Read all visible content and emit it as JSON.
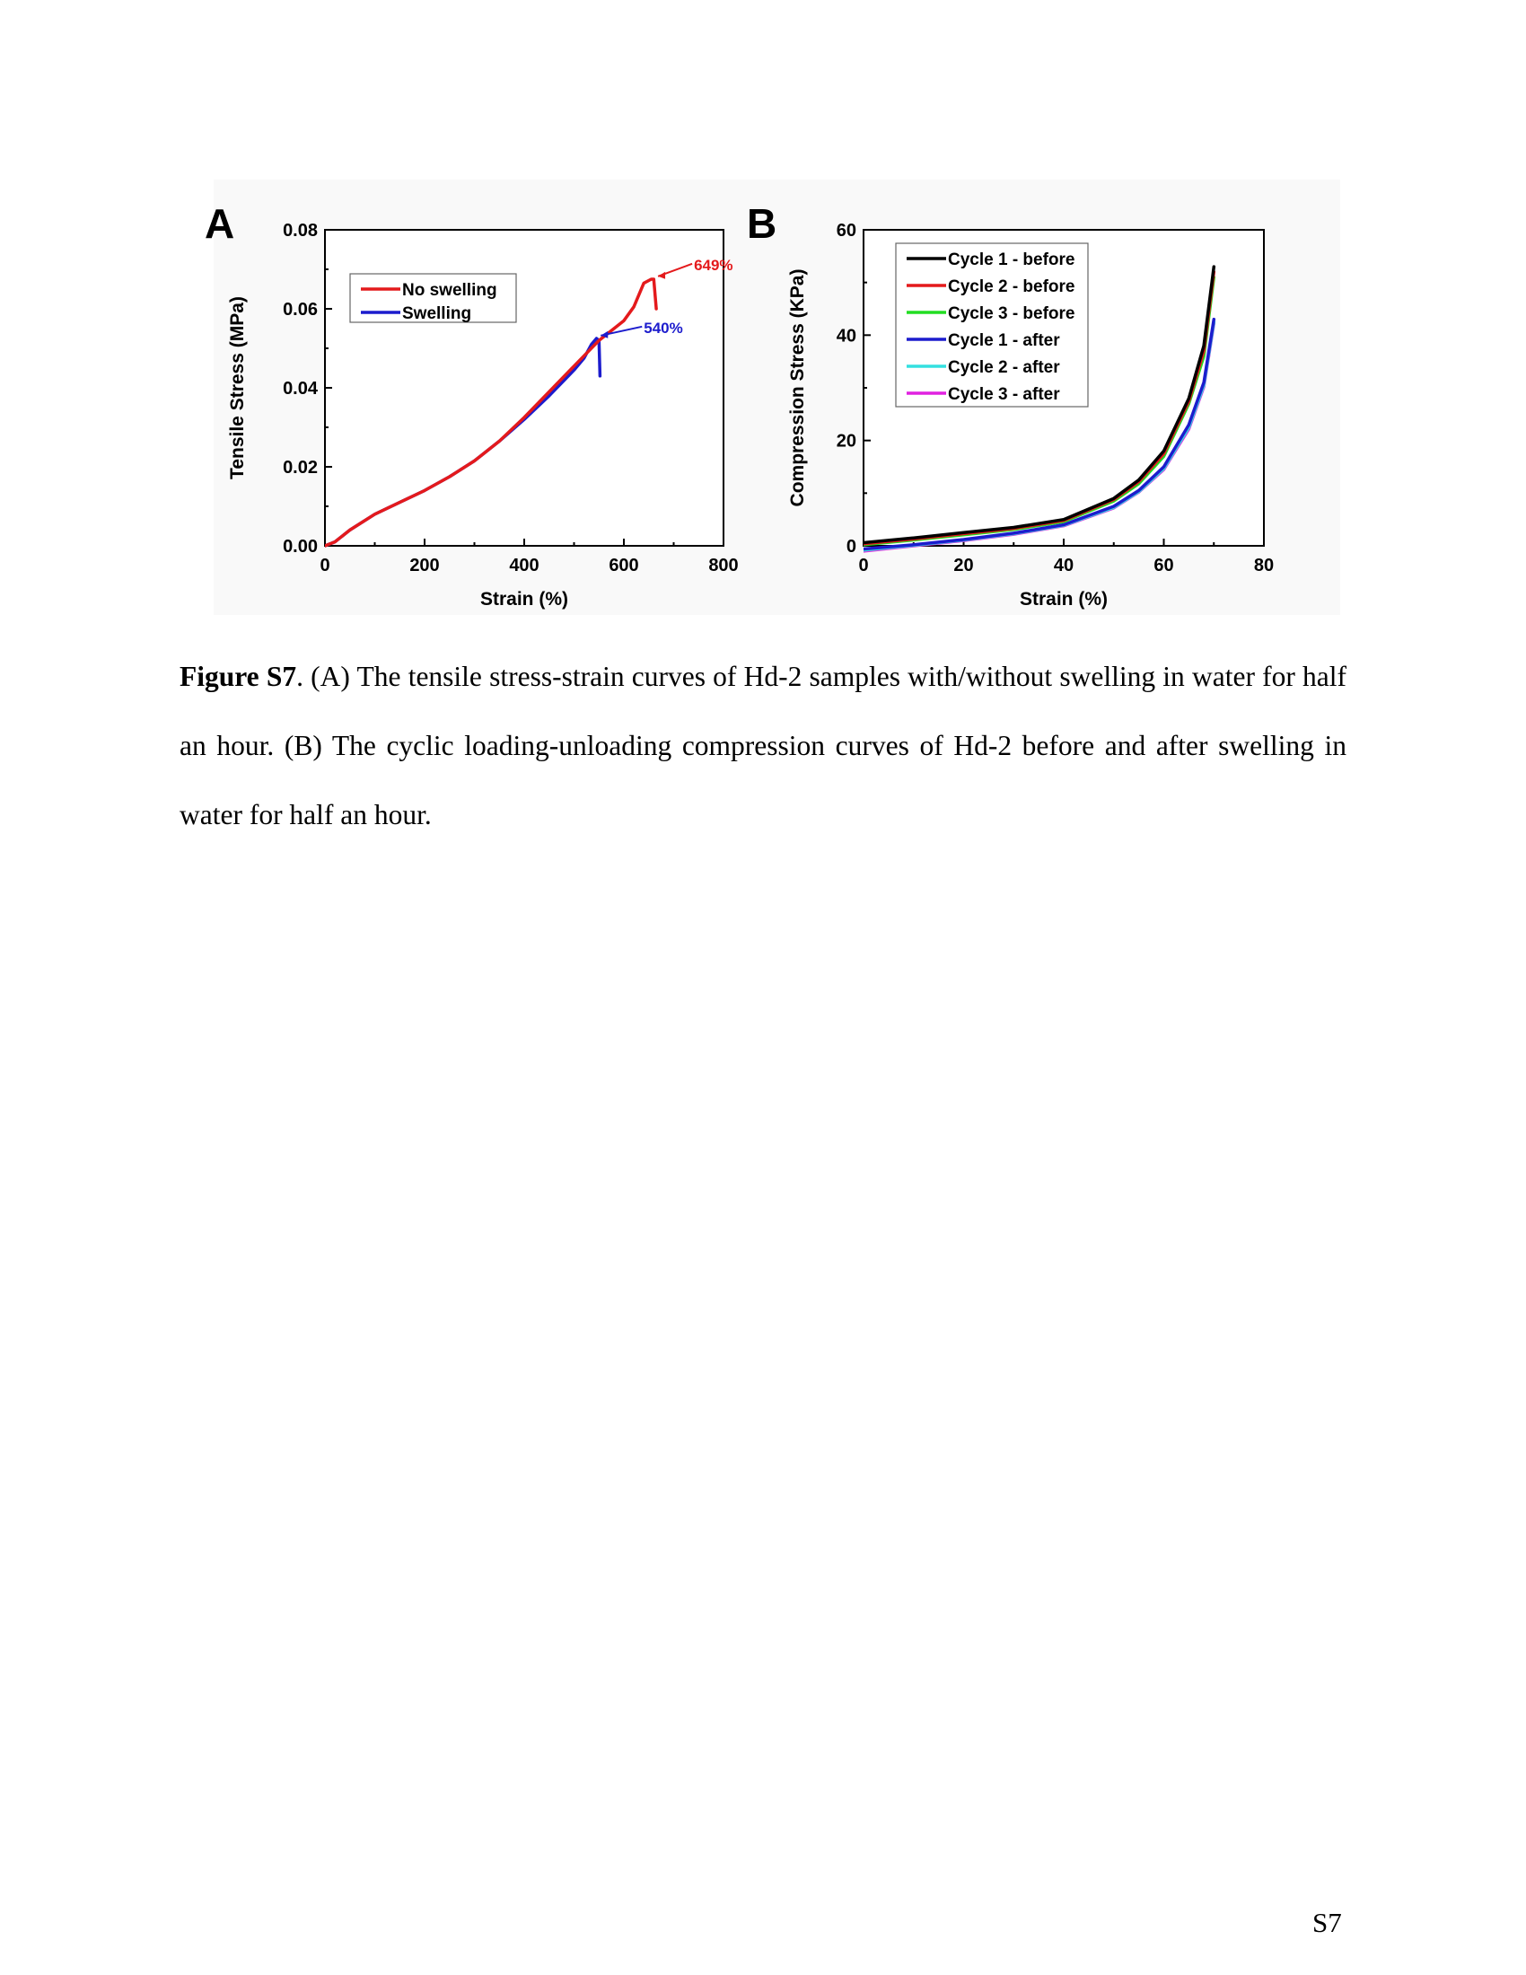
{
  "panels": [
    {
      "label": "A",
      "chart_data": {
        "type": "line",
        "xlabel": "Strain (%)",
        "ylabel": "Tensile Stress (MPa)",
        "xlim": [
          0,
          800
        ],
        "ylim": [
          0,
          0.08
        ],
        "xticks": [
          0,
          200,
          400,
          600,
          800
        ],
        "yticks": [
          0.0,
          0.02,
          0.04,
          0.06,
          0.08
        ],
        "ytick_labels": [
          "0.00",
          "0.02",
          "0.04",
          "0.06",
          "0.08"
        ],
        "legend_position": "top-left",
        "series": [
          {
            "name": "No swelling",
            "color": "#e41a1c",
            "x": [
              0,
              20,
              50,
              100,
              150,
              200,
              250,
              300,
              350,
              400,
              450,
              500,
              550,
              600,
              620,
              640,
              655,
              660,
              665
            ],
            "y": [
              0,
              0.001,
              0.004,
              0.008,
              0.011,
              0.014,
              0.0175,
              0.0215,
              0.0265,
              0.0325,
              0.039,
              0.0455,
              0.052,
              0.057,
              0.0605,
              0.0665,
              0.0675,
              0.0675,
              0.06
            ]
          },
          {
            "name": "Swelling",
            "color": "#1c1ccd",
            "x": [
              0,
              20,
              50,
              100,
              150,
              200,
              250,
              300,
              350,
              400,
              450,
              500,
              520,
              535,
              545,
              550,
              552
            ],
            "y": [
              0,
              0.001,
              0.004,
              0.008,
              0.011,
              0.014,
              0.0175,
              0.0215,
              0.0265,
              0.032,
              0.038,
              0.0445,
              0.0475,
              0.051,
              0.0525,
              0.052,
              0.043
            ]
          }
        ],
        "annotations": [
          {
            "text": "649%",
            "color": "#e41a1c",
            "x": 665,
            "y": 0.068
          },
          {
            "text": "540%",
            "color": "#1c1ccd",
            "x": 550,
            "y": 0.053
          }
        ]
      }
    },
    {
      "label": "B",
      "chart_data": {
        "type": "line",
        "xlabel": "Strain (%)",
        "ylabel": "Compression Stress (KPa)",
        "xlim": [
          0,
          80
        ],
        "ylim": [
          0,
          60
        ],
        "xticks": [
          0,
          20,
          40,
          60,
          80
        ],
        "yticks": [
          0,
          20,
          40,
          60
        ],
        "ytick_labels": [
          "0",
          "20",
          "40",
          "60"
        ],
        "legend_position": "top-left",
        "series": [
          {
            "name": "Cycle 1 - before",
            "color": "#000000",
            "x": [
              0,
              10,
              20,
              30,
              40,
              50,
              55,
              60,
              65,
              68,
              70
            ],
            "y": [
              0.6,
              1.5,
              2.5,
              3.5,
              5,
              9,
              12.5,
              18,
              28,
              38,
              53
            ]
          },
          {
            "name": "Cycle 2 - before",
            "color": "#e41a1c",
            "x": [
              0,
              10,
              20,
              30,
              40,
              50,
              55,
              60,
              65,
              68,
              70
            ],
            "y": [
              0.4,
              1.3,
              2.3,
              3.3,
              4.8,
              8.8,
              12.2,
              17.5,
              27.5,
              37,
              52
            ]
          },
          {
            "name": "Cycle 3 - before",
            "color": "#22dd22",
            "x": [
              0,
              10,
              20,
              30,
              40,
              50,
              55,
              60,
              65,
              68,
              70
            ],
            "y": [
              0.2,
              1.1,
              2.1,
              3.1,
              4.6,
              8.5,
              11.8,
              17,
              27,
              36,
              51
            ]
          },
          {
            "name": "Cycle 1 - after",
            "color": "#1c1ccd",
            "x": [
              0,
              10,
              20,
              30,
              40,
              50,
              55,
              60,
              65,
              68,
              70
            ],
            "y": [
              -0.6,
              0.2,
              1.2,
              2.4,
              4,
              7.5,
              10.5,
              15,
              23,
              31,
              43
            ]
          },
          {
            "name": "Cycle 2 - after",
            "color": "#33e0e0",
            "x": [
              0,
              10,
              20,
              30,
              40,
              50,
              55,
              60,
              65,
              68,
              70
            ],
            "y": [
              -0.8,
              0.1,
              1.1,
              2.3,
              3.9,
              7.3,
              10.3,
              14.7,
              22.5,
              30.5,
              42.5
            ]
          },
          {
            "name": "Cycle 3 - after",
            "color": "#e020e0",
            "x": [
              0,
              10,
              20,
              30,
              40,
              50,
              55,
              60,
              65,
              68,
              70
            ],
            "y": [
              -1,
              0,
              1,
              2.2,
              3.8,
              7.2,
              10.2,
              14.5,
              22.2,
              30.2,
              42.2
            ]
          }
        ]
      }
    }
  ],
  "caption": {
    "bold": "Figure S7",
    "text": ". (A) The tensile stress-strain curves of Hd-2 samples with/without swelling in water for half an hour. (B) The cyclic loading-unloading compression curves of Hd-2 before and after swelling in water for half an hour."
  },
  "page_number": "S7"
}
